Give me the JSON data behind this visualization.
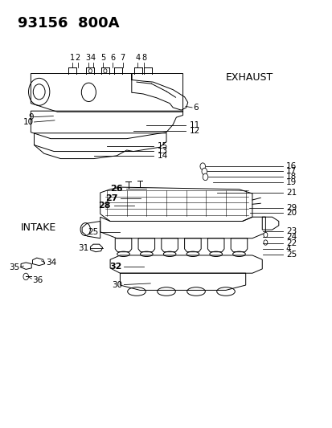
{
  "title": "93156  800A",
  "exhaust_label": "EXHAUST",
  "intake_label": "INTAKE",
  "bg_color": "#ffffff",
  "line_color": "#000000",
  "text_color": "#000000",
  "title_fontsize": 13,
  "label_fontsize": 9,
  "callout_fontsize": 7.5
}
